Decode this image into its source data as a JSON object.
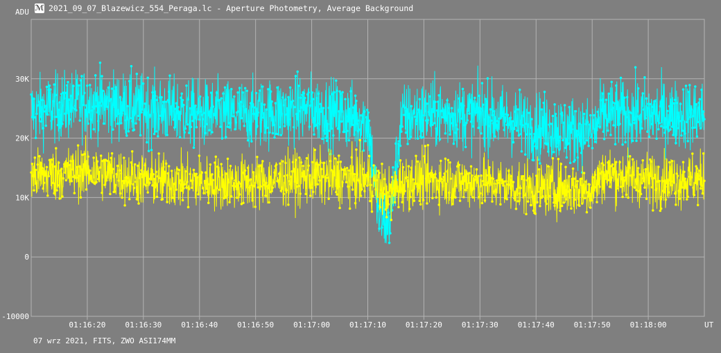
{
  "window": {
    "title": "2021_09_07_Blazewicz_554_Peraga.lc - Aperture Photometry, Average Background",
    "footer": "07 wrz 2021, FITS, ZWO ASI174MM",
    "icon": "photometry-app-icon"
  },
  "colors": {
    "background": "#7f7f7f",
    "grid": "#b4b4b4",
    "series_cyan": "#00ffff",
    "series_yellow": "#ffff00",
    "text": "#ffffff"
  },
  "chart_data": {
    "type": "scatter",
    "title": "",
    "xlabel": "UT",
    "ylabel": "ADU",
    "grid": true,
    "ylim": [
      -10000,
      40000
    ],
    "yticks": [
      {
        "value": 30000,
        "label": "30K"
      },
      {
        "value": 20000,
        "label": "20K"
      },
      {
        "value": 10000,
        "label": "10K"
      },
      {
        "value": 0,
        "label": "0"
      },
      {
        "value": -10000,
        "label": "-10000"
      }
    ],
    "xlim": [
      "01:16:10",
      "01:18:10"
    ],
    "xticks": [
      "01:16:20",
      "01:16:30",
      "01:16:40",
      "01:16:50",
      "01:17:00",
      "01:17:10",
      "01:17:20",
      "01:17:30",
      "01:17:40",
      "01:17:50",
      "01:18:00"
    ],
    "series": [
      {
        "color": "#00ffff",
        "x": [
          "01:16:10",
          "01:16:20",
          "01:16:30",
          "01:16:40",
          "01:16:50",
          "01:17:00",
          "01:17:10",
          "01:17:12",
          "01:17:14",
          "01:17:16",
          "01:17:20",
          "01:17:30",
          "01:17:40",
          "01:17:50",
          "01:17:52",
          "01:18:00",
          "01:18:10"
        ],
        "y": [
          24500,
          26000,
          25000,
          24000,
          24000,
          25000,
          23000,
          6500,
          6000,
          23500,
          24000,
          24000,
          22000,
          21000,
          24000,
          24000,
          24000
        ]
      },
      {
        "color": "#ffff00",
        "x": [
          "01:16:10",
          "01:16:20",
          "01:16:30",
          "01:16:40",
          "01:16:50",
          "01:17:00",
          "01:17:10",
          "01:17:12",
          "01:17:14",
          "01:17:16",
          "01:17:20",
          "01:17:30",
          "01:17:40",
          "01:17:50",
          "01:17:52",
          "01:18:00",
          "01:18:10"
        ],
        "y": [
          13500,
          14500,
          13000,
          12500,
          12500,
          13500,
          13000,
          11500,
          10500,
          12500,
          13000,
          12500,
          11500,
          11500,
          14000,
          13000,
          13000
        ]
      }
    ]
  }
}
